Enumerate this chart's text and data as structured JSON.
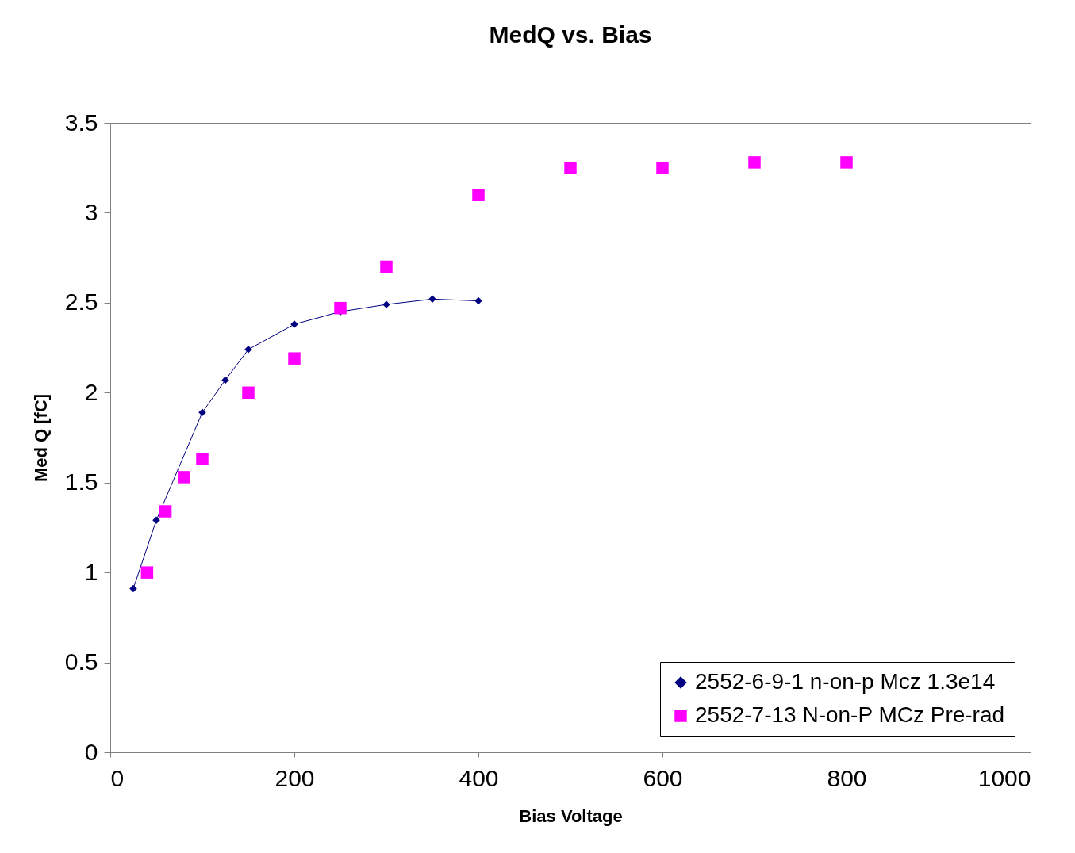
{
  "chart_data": {
    "type": "line",
    "title": "MedQ vs. Bias",
    "xlabel": "Bias Voltage",
    "ylabel": "Med Q [fC]",
    "xlim": [
      0,
      1000
    ],
    "xticks": [
      0,
      200,
      400,
      600,
      800,
      1000
    ],
    "ylim": [
      0,
      3.5
    ],
    "yticks": [
      0,
      0.5,
      1,
      1.5,
      2,
      2.5,
      3,
      3.5
    ],
    "grid": false,
    "legend": "bottom right",
    "series": [
      {
        "name": "2552-6-9-1 n-on-p Mcz 1.3e14",
        "marker": "diamond",
        "color": "#000080",
        "x": [
          25,
          50,
          100,
          125,
          150,
          200,
          250,
          300,
          350,
          400
        ],
        "values": [
          0.91,
          1.29,
          1.89,
          2.07,
          2.24,
          2.38,
          2.45,
          2.49,
          2.52,
          2.51
        ]
      },
      {
        "name": "2552-7-13 N-on-P MCz Pre-rad",
        "type": "scatter",
        "marker": "square",
        "color": "#ff00ff",
        "x": [
          40,
          60,
          80,
          100,
          150,
          200,
          250,
          300,
          400,
          500,
          600,
          700,
          800
        ],
        "values": [
          1.0,
          1.34,
          1.53,
          1.63,
          2.0,
          2.19,
          2.47,
          2.7,
          3.1,
          3.25,
          3.25,
          3.28,
          3.28
        ]
      }
    ]
  }
}
